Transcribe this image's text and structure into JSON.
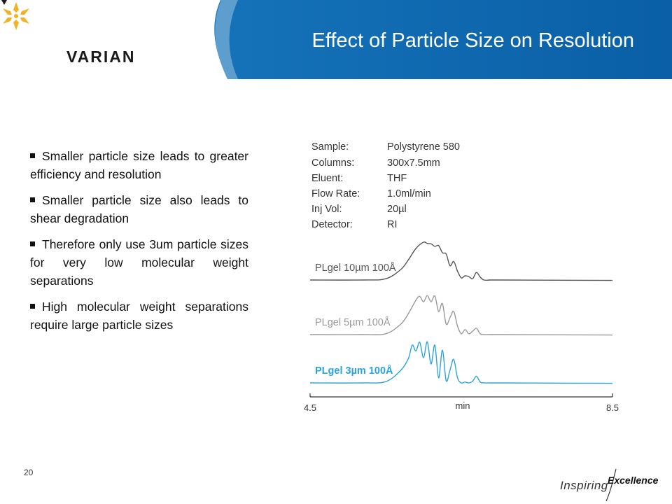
{
  "header": {
    "title": "Effect of Particle Size on Resolution",
    "logo_text": "VARIAN",
    "logo_icon": "varian-star-icon",
    "band_color": "#0a6ab4",
    "logo_color": "#f0b323"
  },
  "bullets": [
    "Smaller particle size leads to greater efficiency and resolution",
    "Smaller particle size also leads to shear degradation",
    "Therefore only use 3um particle sizes for very low molecular weight separations",
    "High molecular weight separations require large particle sizes"
  ],
  "conditions": [
    {
      "label": "Sample:",
      "value": "Polystyrene 580"
    },
    {
      "label": "Columns:",
      "value": "300x7.5mm"
    },
    {
      "label": "Eluent:",
      "value": "THF"
    },
    {
      "label": "Flow Rate:",
      "value": "1.0ml/min"
    },
    {
      "label": "Inj Vol:",
      "value": "20µl"
    },
    {
      "label": "Detector:",
      "value": "RI"
    }
  ],
  "chart_data": {
    "type": "line",
    "title": "",
    "xlabel": "min",
    "ylabel": "",
    "xlim": [
      4.5,
      8.5
    ],
    "tick_labels": [
      "4.5",
      "8.5"
    ],
    "grid": false,
    "series": [
      {
        "name": "PLgel 10µm 100Å",
        "color": "#555555",
        "x": [
          4.5,
          5.2,
          5.5,
          5.7,
          5.8,
          5.9,
          6.0,
          6.05,
          6.1,
          6.15,
          6.2,
          6.25,
          6.3,
          6.35,
          6.4,
          6.45,
          6.5,
          6.55,
          6.6,
          6.65,
          6.7,
          6.75,
          6.8,
          6.9,
          7.0,
          8.5
        ],
        "y": [
          0,
          0,
          0.03,
          0.25,
          0.48,
          0.75,
          0.9,
          0.87,
          0.86,
          0.8,
          0.82,
          0.65,
          0.62,
          0.34,
          0.44,
          0.21,
          0.05,
          0.1,
          0.08,
          0.03,
          0.18,
          0.07,
          0.0,
          0.0,
          0.0,
          -0.01
        ]
      },
      {
        "name": "PLgel 5µm 100Å",
        "color": "#999999",
        "x": [
          4.5,
          5.2,
          5.5,
          5.7,
          5.8,
          5.9,
          5.95,
          6.0,
          6.05,
          6.1,
          6.15,
          6.2,
          6.25,
          6.3,
          6.35,
          6.4,
          6.45,
          6.5,
          6.55,
          6.6,
          6.65,
          6.7,
          6.75,
          6.8,
          6.9,
          7.0,
          8.5
        ],
        "y": [
          0,
          0,
          0.02,
          0.25,
          0.5,
          0.82,
          0.91,
          0.78,
          0.93,
          0.78,
          0.92,
          0.55,
          0.74,
          0.25,
          0.4,
          0.55,
          0.2,
          0.02,
          0.12,
          0.02,
          0.08,
          0.15,
          0.02,
          0.0,
          0.0,
          0.0,
          -0.01
        ]
      },
      {
        "name": "PLgel 3µm 100Å",
        "color": "#2aa3dc",
        "x": [
          4.5,
          5.2,
          5.5,
          5.7,
          5.8,
          5.85,
          5.9,
          5.95,
          6.0,
          6.05,
          6.1,
          6.15,
          6.2,
          6.25,
          6.3,
          6.35,
          6.4,
          6.45,
          6.5,
          6.55,
          6.6,
          6.65,
          6.7,
          6.75,
          6.8,
          6.9,
          7.0,
          8.5
        ],
        "y": [
          0,
          0,
          0.03,
          0.3,
          0.58,
          0.9,
          0.76,
          0.97,
          0.6,
          0.98,
          0.45,
          0.9,
          0.12,
          0.78,
          0.05,
          0.3,
          0.56,
          0.12,
          0.0,
          0.02,
          0.0,
          0.04,
          0.16,
          0.02,
          0.0,
          0.0,
          0.0,
          -0.01
        ]
      }
    ]
  },
  "page_number": "20",
  "footer": {
    "inspiring": "Inspiring",
    "excellence": "Excellence"
  }
}
